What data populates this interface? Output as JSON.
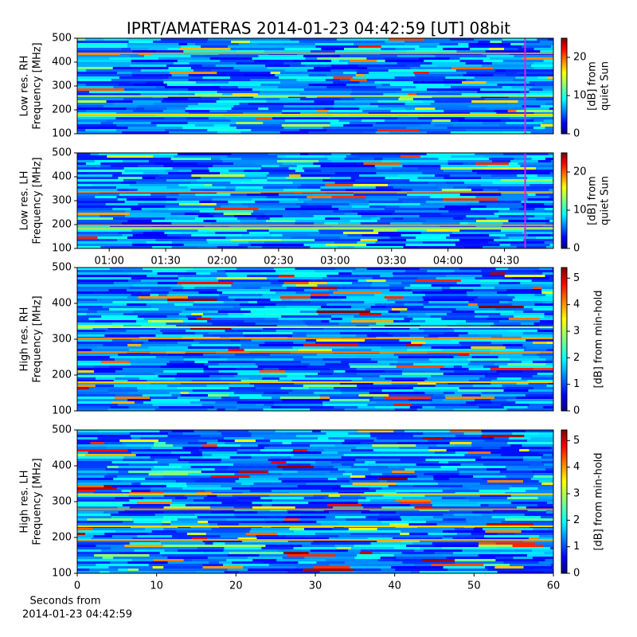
{
  "title": "IPRT/AMATERAS 2014-01-23 04:42:59 [UT]   08bit",
  "xlabel": [
    "Seconds from",
    "2014-01-23 04:42:59"
  ],
  "chart_data": [
    {
      "type": "spectrogram",
      "ylabel": [
        "Low res. RH",
        "Frequency [MHz]"
      ],
      "ylim": [
        100,
        500
      ],
      "yticks": [
        100,
        200,
        300,
        400,
        500
      ],
      "xlim": [
        43,
        296
      ],
      "marker": 281,
      "marker_color": "#e020e0",
      "colorbar": {
        "label": [
          "[dB] from",
          "quiet Sun"
        ],
        "lim": [
          0,
          25
        ],
        "ticks": [
          0,
          10,
          20
        ],
        "colormap": "jet"
      }
    },
    {
      "type": "spectrogram",
      "ylabel": [
        "Low res. LH",
        "Frequency [MHz]"
      ],
      "ylim": [
        100,
        500
      ],
      "yticks": [
        100,
        200,
        300,
        400,
        500
      ],
      "xlim": [
        43,
        296
      ],
      "xticks": [
        {
          "value": 60,
          "label": "01:00"
        },
        {
          "value": 90,
          "label": "01:30"
        },
        {
          "value": 120,
          "label": "02:00"
        },
        {
          "value": 150,
          "label": "02:30"
        },
        {
          "value": 180,
          "label": "03:00"
        },
        {
          "value": 210,
          "label": "03:30"
        },
        {
          "value": 240,
          "label": "04:00"
        },
        {
          "value": 270,
          "label": "04:30"
        }
      ],
      "marker": 281,
      "marker_color": "#e020e0",
      "colorbar": {
        "label": [
          "[dB] from",
          "quiet Sun"
        ],
        "lim": [
          0,
          25
        ],
        "ticks": [
          0,
          10,
          20
        ],
        "colormap": "jet"
      }
    },
    {
      "type": "spectrogram",
      "ylabel": [
        "High res. RH",
        "Frequency [MHz]"
      ],
      "ylim": [
        100,
        500
      ],
      "yticks": [
        100,
        200,
        300,
        400,
        500
      ],
      "xlim": [
        0,
        60
      ],
      "colorbar": {
        "label": [
          "[dB] from min-hold"
        ],
        "lim": [
          0,
          5.4
        ],
        "ticks": [
          0,
          1,
          2,
          3,
          4,
          5
        ],
        "colormap": "jet"
      }
    },
    {
      "type": "spectrogram",
      "ylabel": [
        "High res. LH",
        "Frequency [MHz]"
      ],
      "ylim": [
        100,
        500
      ],
      "yticks": [
        100,
        200,
        300,
        400,
        500
      ],
      "xlim": [
        0,
        60
      ],
      "xticks": [
        0,
        10,
        20,
        30,
        40,
        50,
        60
      ],
      "colorbar": {
        "label": [
          "[dB] from min-hold"
        ],
        "lim": [
          0,
          5.4
        ],
        "ticks": [
          0,
          1,
          2,
          3,
          4,
          5
        ],
        "colormap": "jet"
      }
    }
  ]
}
